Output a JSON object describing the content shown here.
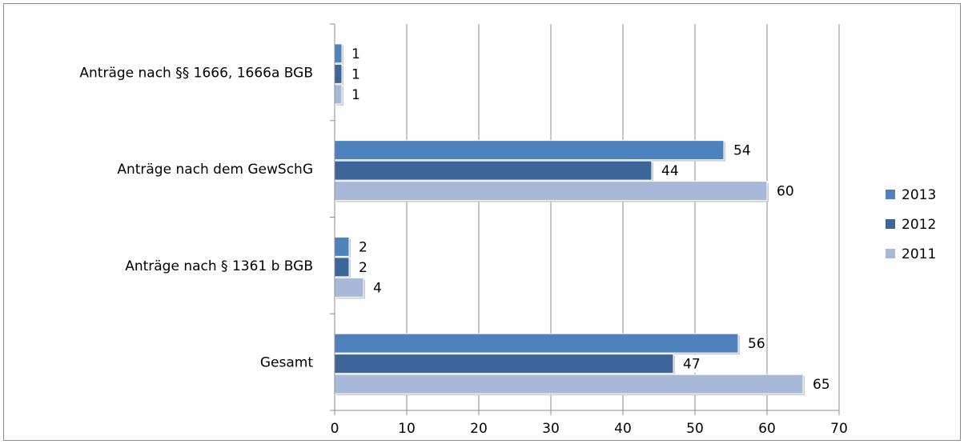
{
  "chart_data": {
    "type": "bar",
    "orientation": "horizontal",
    "categories": [
      "Anträge nach §§ 1666, 1666a BGB",
      "Anträge nach dem GewSchG",
      "Anträge nach § 1361 b BGB",
      "Gesamt"
    ],
    "series": [
      {
        "name": "2013",
        "color": "#4f81bd",
        "values": [
          1,
          54,
          2,
          56
        ]
      },
      {
        "name": "2012",
        "color": "#3c659a",
        "values": [
          1,
          44,
          2,
          47
        ]
      },
      {
        "name": "2011",
        "color": "#a7b8d8",
        "values": [
          1,
          60,
          4,
          65
        ]
      }
    ],
    "xlim": [
      0,
      70
    ],
    "xticks": [
      0,
      10,
      20,
      30,
      40,
      50,
      60,
      70
    ],
    "grid": true,
    "legend": "right",
    "data_labels": true
  }
}
